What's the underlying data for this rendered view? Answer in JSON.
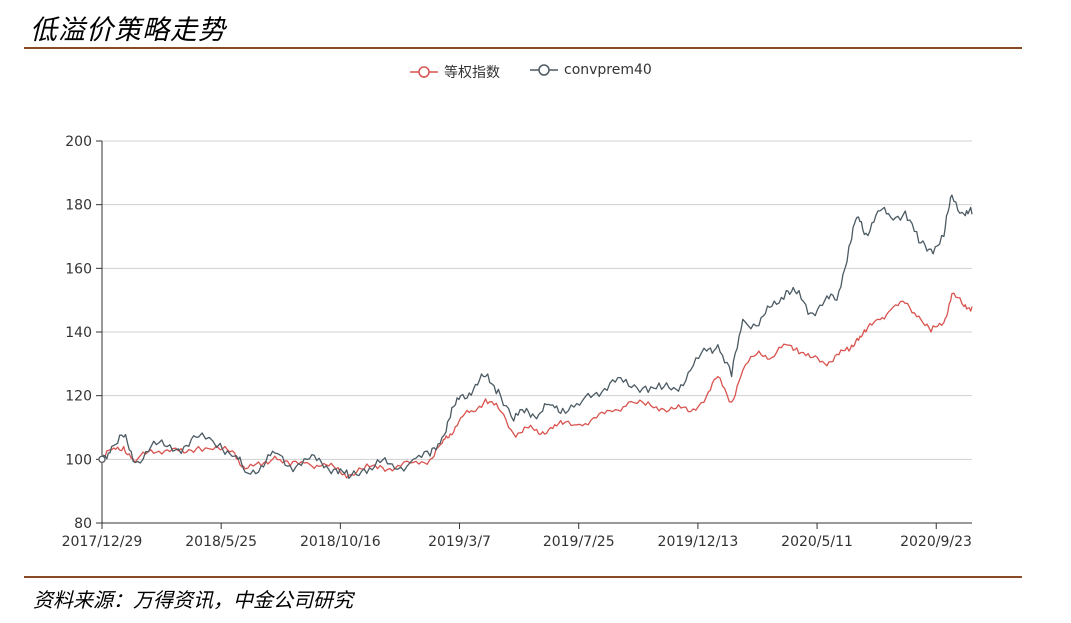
{
  "title": "低溢价策略走势",
  "source": "资料来源：万得资讯，中金公司研究",
  "chart_data": {
    "type": "line",
    "x_tick_labels": [
      "2017/12/29",
      "2018/5/25",
      "2018/10/16",
      "2019/3/7",
      "2019/7/25",
      "2019/12/13",
      "2020/5/11",
      "2020/9/23"
    ],
    "ylim": [
      80,
      200
    ],
    "yticks": [
      80,
      100,
      120,
      140,
      160,
      180,
      200
    ],
    "grid": "horizontal",
    "legend_position": "top-center",
    "series": [
      {
        "name": "等权指数",
        "color": "#d9534f",
        "points": [
          [
            "2017/12/29",
            100
          ],
          [
            "2018/1/10",
            103
          ],
          [
            "2018/1/25",
            104
          ],
          [
            "2018/2/8",
            99
          ],
          [
            "2018/2/28",
            103
          ],
          [
            "2018/3/20",
            103
          ],
          [
            "2018/4/10",
            102
          ],
          [
            "2018/4/28",
            104
          ],
          [
            "2018/5/25",
            103
          ],
          [
            "2018/6/12",
            102
          ],
          [
            "2018/6/25",
            97
          ],
          [
            "2018/7/15",
            98
          ],
          [
            "2018/8/1",
            101
          ],
          [
            "2018/8/20",
            98
          ],
          [
            "2018/9/10",
            99
          ],
          [
            "2018/9/28",
            98
          ],
          [
            "2018/10/16",
            97
          ],
          [
            "2018/11/1",
            95
          ],
          [
            "2018/11/20",
            97
          ],
          [
            "2018/12/10",
            98
          ],
          [
            "2018/12/28",
            97
          ],
          [
            "2019/1/20",
            99
          ],
          [
            "2019/2/10",
            100
          ],
          [
            "2019/2/25",
            105
          ],
          [
            "2019/3/7",
            108
          ],
          [
            "2019/3/20",
            113
          ],
          [
            "2019/4/5",
            115
          ],
          [
            "2019/4/20",
            119
          ],
          [
            "2019/5/6",
            116
          ],
          [
            "2019/5/25",
            108
          ],
          [
            "2019/6/10",
            110
          ],
          [
            "2019/6/25",
            108
          ],
          [
            "2019/7/10",
            110
          ],
          [
            "2019/7/25",
            111
          ],
          [
            "2019/8/15",
            111
          ],
          [
            "2019/9/5",
            113
          ],
          [
            "2019/9/25",
            115
          ],
          [
            "2019/10/15",
            118
          ],
          [
            "2019/11/5",
            117
          ],
          [
            "2019/11/25",
            116
          ],
          [
            "2019/12/13",
            116
          ],
          [
            "2019/12/31",
            115
          ],
          [
            "2020/1/20",
            120
          ],
          [
            "2020/2/3",
            126
          ],
          [
            "2020/2/20",
            118
          ],
          [
            "2020/3/5",
            128
          ],
          [
            "2020/3/25",
            134
          ],
          [
            "2020/4/10",
            132
          ],
          [
            "2020/4/28",
            136
          ],
          [
            "2020/5/11",
            135
          ],
          [
            "2020/5/28",
            132
          ],
          [
            "2020/6/15",
            130
          ],
          [
            "2020/6/30",
            133
          ],
          [
            "2020/7/15",
            134
          ],
          [
            "2020/7/25",
            138
          ],
          [
            "2020/8/5",
            140
          ],
          [
            "2020/8/20",
            144
          ],
          [
            "2020/9/5",
            147
          ],
          [
            "2020/9/23",
            149
          ],
          [
            "2020/10/10",
            145
          ],
          [
            "2020/10/25",
            140
          ],
          [
            "2020/11/10",
            143
          ],
          [
            "2020/11/20",
            152
          ],
          [
            "2020/12/5",
            148
          ],
          [
            "2020/12/15",
            148
          ]
        ]
      },
      {
        "name": "convprem40",
        "color": "#4b5a63",
        "points": [
          [
            "2017/12/29",
            100
          ],
          [
            "2018/1/10",
            104
          ],
          [
            "2018/1/25",
            107
          ],
          [
            "2018/2/8",
            99
          ],
          [
            "2018/2/28",
            104
          ],
          [
            "2018/3/20",
            104
          ],
          [
            "2018/4/10",
            104
          ],
          [
            "2018/4/28",
            107
          ],
          [
            "2018/5/25",
            105
          ],
          [
            "2018/6/12",
            101
          ],
          [
            "2018/6/25",
            96
          ],
          [
            "2018/7/15",
            98
          ],
          [
            "2018/8/1",
            102
          ],
          [
            "2018/8/20",
            98
          ],
          [
            "2018/9/10",
            100
          ],
          [
            "2018/9/28",
            99
          ],
          [
            "2018/10/16",
            97
          ],
          [
            "2018/11/1",
            94
          ],
          [
            "2018/11/20",
            97
          ],
          [
            "2018/12/10",
            99
          ],
          [
            "2018/12/28",
            97
          ],
          [
            "2019/1/20",
            100
          ],
          [
            "2019/2/10",
            101
          ],
          [
            "2019/2/25",
            107
          ],
          [
            "2019/3/7",
            113
          ],
          [
            "2019/3/20",
            120
          ],
          [
            "2019/4/5",
            122
          ],
          [
            "2019/4/20",
            126
          ],
          [
            "2019/5/6",
            122
          ],
          [
            "2019/5/25",
            112
          ],
          [
            "2019/6/10",
            116
          ],
          [
            "2019/6/25",
            114
          ],
          [
            "2019/7/10",
            117
          ],
          [
            "2019/7/25",
            116
          ],
          [
            "2019/8/15",
            117
          ],
          [
            "2019/9/5",
            121
          ],
          [
            "2019/9/25",
            125
          ],
          [
            "2019/10/15",
            123
          ],
          [
            "2019/11/5",
            123
          ],
          [
            "2019/11/25",
            122
          ],
          [
            "2019/12/13",
            122
          ],
          [
            "2019/12/31",
            128
          ],
          [
            "2020/1/20",
            134
          ],
          [
            "2020/2/3",
            136
          ],
          [
            "2020/2/20",
            126
          ],
          [
            "2020/3/5",
            144
          ],
          [
            "2020/3/25",
            142
          ],
          [
            "2020/4/10",
            148
          ],
          [
            "2020/4/28",
            153
          ],
          [
            "2020/5/11",
            152
          ],
          [
            "2020/5/28",
            146
          ],
          [
            "2020/6/15",
            150
          ],
          [
            "2020/6/30",
            150
          ],
          [
            "2020/7/15",
            167
          ],
          [
            "2020/7/25",
            176
          ],
          [
            "2020/8/5",
            171
          ],
          [
            "2020/8/20",
            178
          ],
          [
            "2020/9/5",
            176
          ],
          [
            "2020/9/23",
            178
          ],
          [
            "2020/10/10",
            168
          ],
          [
            "2020/10/25",
            166
          ],
          [
            "2020/11/10",
            170
          ],
          [
            "2020/11/20",
            183
          ],
          [
            "2020/12/5",
            177
          ],
          [
            "2020/12/15",
            177
          ]
        ]
      }
    ]
  }
}
